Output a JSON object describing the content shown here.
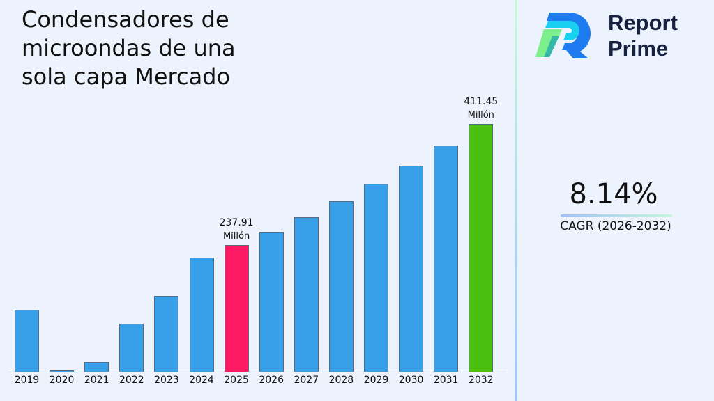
{
  "title": "Condensadores de microondas de una sola capa Mercado",
  "brand": {
    "line1": "Report",
    "line2": "Prime"
  },
  "cagr": {
    "value": "8.14%",
    "label": "CAGR (2026-2032)"
  },
  "annotations": {
    "a2025": {
      "value": "237.91",
      "unit": "Millón"
    },
    "a2032": {
      "value": "411.45",
      "unit": "Millón"
    }
  },
  "colors": {
    "default": "#37a0e8",
    "highlight_2025": "#fc1a63",
    "highlight_2032": "#4bbf0f"
  },
  "chart_data": {
    "type": "bar",
    "title": "Condensadores de microondas de una sola capa Mercado",
    "xlabel": "",
    "ylabel": "",
    "unit": "Millón",
    "categories": [
      "2019",
      "2020",
      "2021",
      "2022",
      "2023",
      "2024",
      "2025",
      "2026",
      "2027",
      "2028",
      "2029",
      "2030",
      "2031",
      "2032"
    ],
    "values": [
      146.0,
      47.5,
      71.0,
      126.0,
      165.5,
      220.0,
      237.91,
      257.3,
      278.2,
      300.9,
      325.4,
      351.9,
      380.5,
      411.45
    ],
    "highlighted": {
      "2025": "237.91 Millón",
      "2032": "411.45 Millón"
    },
    "ylim": [
      57,
      411.45
    ],
    "grid": false,
    "legend": "none",
    "cagr": "8.14% (2026-2032)"
  }
}
